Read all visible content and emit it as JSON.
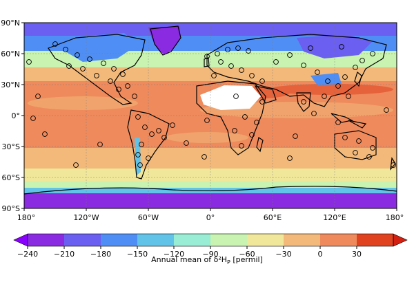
{
  "map": {
    "lat_labels": [
      "90°N",
      "60°N",
      "30°N",
      "0°",
      "30°S",
      "60°S",
      "90°S"
    ],
    "lon_labels": [
      "180°",
      "120°W",
      "60°W",
      "0°",
      "60°E",
      "120°E",
      "180°"
    ]
  },
  "colorbar": {
    "title": "Annual mean of δ²H",
    "title_subscript": "P",
    "title_suffix": " [permil]",
    "ticks": [
      "−240",
      "−210",
      "−180",
      "−150",
      "−120",
      "−90",
      "−60",
      "−30",
      "0",
      "30"
    ],
    "bin_colors": [
      "#8a2be2",
      "#6a5ff0",
      "#4f8ff5",
      "#62c3e8",
      "#98edd4",
      "#c8f3b0",
      "#f1e79a",
      "#f3b97a",
      "#ee8a5c",
      "#e0421f"
    ],
    "under_color": "#8a00ff",
    "over_color": "#d42010"
  },
  "legend_colors": {
    "ocean_tropics": "#ee8a5c",
    "ocean_midlat": "#f3b97a",
    "ocean_highlat": "#f1e79a",
    "polar": "#6a5ff0",
    "sahara": "#ffffff",
    "coast": "#000000",
    "station_marker_edge": "#000000"
  }
}
